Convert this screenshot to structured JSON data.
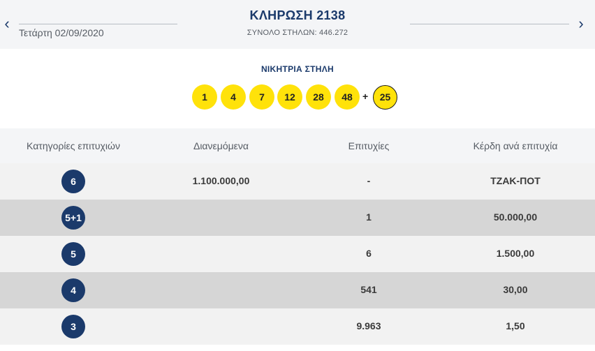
{
  "header": {
    "prev_arrow": "‹",
    "next_arrow": "›",
    "date": "Τετάρτη 02/09/2020",
    "draw_title": "ΚΛΗΡΩΣΗ 2138",
    "total_columns": "ΣΥΝΟΛΟ ΣΤΗΛΩΝ: 446.272"
  },
  "winning": {
    "label": "ΝΙΚΗΤΡΙΑ ΣΤΗΛΗ",
    "numbers": [
      "1",
      "4",
      "7",
      "12",
      "28",
      "48"
    ],
    "plus": "+",
    "joker": "25"
  },
  "table": {
    "headers": [
      "Κατηγορίες επιτυχιών",
      "Διανεμόμενα",
      "Επιτυχίες",
      "Κέρδη ανά επιτυχία"
    ],
    "rows": [
      {
        "category": "6",
        "distributed": "1.100.000,00",
        "winners": "-",
        "prize": "ΤΖΑΚ-ΠΟΤ"
      },
      {
        "category": "5+1",
        "distributed": "",
        "winners": "1",
        "prize": "50.000,00"
      },
      {
        "category": "5",
        "distributed": "",
        "winners": "6",
        "prize": "1.500,00"
      },
      {
        "category": "4",
        "distributed": "",
        "winners": "541",
        "prize": "30,00"
      },
      {
        "category": "3",
        "distributed": "",
        "winners": "9.963",
        "prize": "1,50"
      }
    ]
  },
  "colors": {
    "navy": "#1b3a6b",
    "ball_yellow": "#ffe20a",
    "row_light": "#f2f2f2",
    "row_dark": "#d6d6d6"
  }
}
